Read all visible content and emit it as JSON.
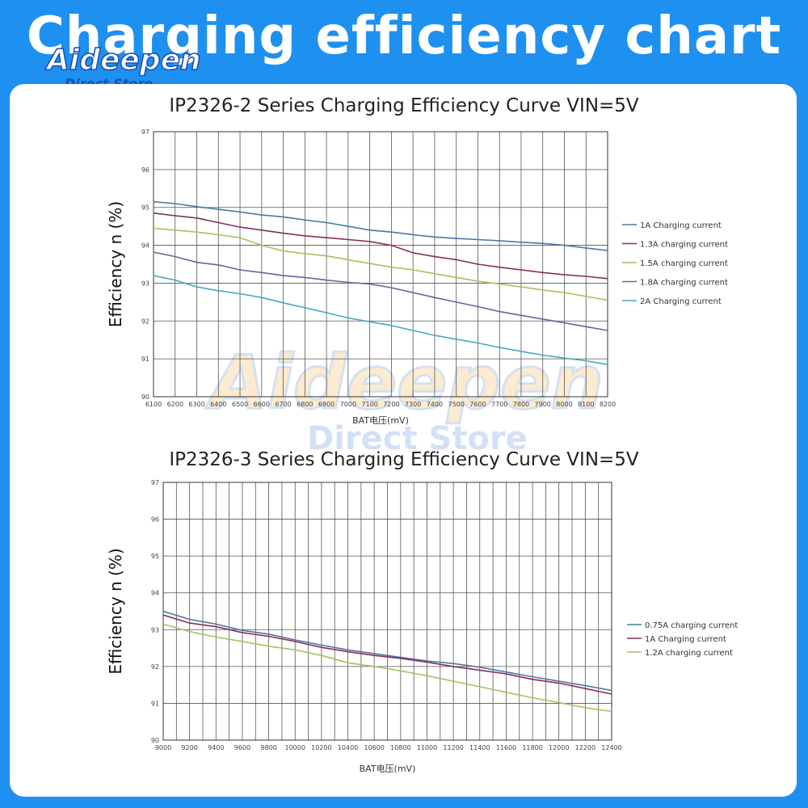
{
  "banner": {
    "title": "Charging efficiency chart"
  },
  "logo": {
    "word": "Aideepen",
    "sub": "Direct Store"
  },
  "watermark": {
    "word": "Aideepen",
    "sub": "Direct Store"
  },
  "colors": {
    "background": "#1e90f0",
    "grid": "#555555",
    "series": [
      "#4a78a8",
      "#8a2d55",
      "#a9c05f",
      "#7a5a9c",
      "#4aa6c0"
    ]
  },
  "chart_data": [
    {
      "type": "line",
      "title": "IP2326-2 Series Charging Efficiency Curve VIN=5V",
      "xlabel": "BAT电压(mV)",
      "ylabel": "Efficiency n (%)",
      "xlim": [
        6100,
        8200
      ],
      "ylim": [
        90,
        97
      ],
      "x_ticks": [
        6100,
        6200,
        6300,
        6400,
        6500,
        6600,
        6700,
        6800,
        6900,
        7000,
        7100,
        7200,
        7300,
        7400,
        7500,
        7600,
        7700,
        7800,
        7900,
        8000,
        8100,
        8200
      ],
      "y_ticks": [
        90,
        91,
        92,
        93,
        94,
        95,
        96,
        97
      ],
      "grid": true,
      "legend_position": "right",
      "series": [
        {
          "name": "1A Charging current",
          "color": "#4a78a8",
          "x": [
            6100,
            6200,
            6300,
            6400,
            6500,
            6600,
            6700,
            6800,
            6900,
            7000,
            7100,
            7200,
            7300,
            7400,
            7500,
            7600,
            7700,
            7800,
            7900,
            8000,
            8100,
            8200
          ],
          "y": [
            95.15,
            95.1,
            95.02,
            94.95,
            94.88,
            94.8,
            94.75,
            94.67,
            94.6,
            94.5,
            94.4,
            94.35,
            94.28,
            94.22,
            94.18,
            94.15,
            94.12,
            94.08,
            94.05,
            94.0,
            93.93,
            93.86
          ]
        },
        {
          "name": "1.3A charging current",
          "color": "#8a2d55",
          "x": [
            6100,
            6200,
            6300,
            6400,
            6500,
            6600,
            6700,
            6800,
            6900,
            7000,
            7100,
            7200,
            7300,
            7400,
            7500,
            7600,
            7700,
            7800,
            7900,
            8000,
            8100,
            8200
          ],
          "y": [
            94.85,
            94.78,
            94.72,
            94.6,
            94.48,
            94.4,
            94.32,
            94.25,
            94.2,
            94.15,
            94.1,
            94.0,
            93.8,
            93.7,
            93.62,
            93.5,
            93.42,
            93.35,
            93.28,
            93.22,
            93.18,
            93.12
          ]
        },
        {
          "name": "1.5A charging current",
          "color": "#a9c05f",
          "x": [
            6100,
            6200,
            6300,
            6400,
            6500,
            6600,
            6700,
            6800,
            6900,
            7000,
            7100,
            7200,
            7300,
            7400,
            7500,
            7600,
            7700,
            7800,
            7900,
            8000,
            8100,
            8200
          ],
          "y": [
            94.45,
            94.4,
            94.35,
            94.28,
            94.2,
            94.0,
            93.85,
            93.78,
            93.72,
            93.62,
            93.52,
            93.42,
            93.35,
            93.25,
            93.15,
            93.05,
            92.98,
            92.9,
            92.82,
            92.75,
            92.65,
            92.55
          ]
        },
        {
          "name": "1.8A charging current",
          "color": "#7a5a9c",
          "x": [
            6100,
            6200,
            6300,
            6400,
            6500,
            6600,
            6700,
            6800,
            6900,
            7000,
            7100,
            7200,
            7300,
            7400,
            7500,
            7600,
            7700,
            7800,
            7900,
            8000,
            8100,
            8200
          ],
          "y": [
            93.82,
            93.7,
            93.55,
            93.48,
            93.35,
            93.28,
            93.2,
            93.15,
            93.08,
            93.02,
            92.98,
            92.88,
            92.75,
            92.62,
            92.5,
            92.38,
            92.25,
            92.15,
            92.05,
            91.95,
            91.85,
            91.75
          ]
        },
        {
          "name": "2A Charging current",
          "color": "#4aa6c0",
          "x": [
            6100,
            6200,
            6300,
            6400,
            6500,
            6600,
            6700,
            6800,
            6900,
            7000,
            7100,
            7200,
            7300,
            7400,
            7500,
            7600,
            7700,
            7800,
            7900,
            8000,
            8100,
            8200
          ],
          "y": [
            93.2,
            93.08,
            92.9,
            92.8,
            92.72,
            92.62,
            92.48,
            92.35,
            92.22,
            92.08,
            91.98,
            91.88,
            91.75,
            91.62,
            91.52,
            91.42,
            91.3,
            91.2,
            91.1,
            91.02,
            90.95,
            90.85
          ]
        }
      ]
    },
    {
      "type": "line",
      "title": "IP2326-3 Series Charging Efficiency Curve VIN=5V",
      "xlabel": "BAT电压(mV)",
      "ylabel": "Efficiency n (%)",
      "xlim": [
        9000,
        12400
      ],
      "ylim": [
        90,
        97
      ],
      "x_ticks": [
        9000,
        9200,
        9400,
        9600,
        9800,
        10000,
        10200,
        10400,
        10600,
        10800,
        11000,
        11200,
        11400,
        11600,
        11800,
        12000,
        12200,
        12400
      ],
      "y_ticks": [
        90,
        91,
        92,
        93,
        94,
        95,
        96,
        97
      ],
      "x_minor_step": 100,
      "grid": true,
      "legend_position": "right",
      "series": [
        {
          "name": "0.75A charging current",
          "color": "#4a78a8",
          "x": [
            9000,
            9200,
            9400,
            9600,
            9800,
            10000,
            10200,
            10400,
            10600,
            10800,
            11000,
            11200,
            11400,
            11600,
            11800,
            12000,
            12200,
            12400
          ],
          "y": [
            93.5,
            93.28,
            93.15,
            92.98,
            92.88,
            92.72,
            92.58,
            92.45,
            92.35,
            92.25,
            92.15,
            92.08,
            91.98,
            91.85,
            91.72,
            91.6,
            91.48,
            91.35
          ]
        },
        {
          "name": "1A Charging current",
          "color": "#8a2d55",
          "x": [
            9000,
            9200,
            9400,
            9600,
            9800,
            10000,
            10200,
            10400,
            10600,
            10800,
            11000,
            11200,
            11400,
            11600,
            11800,
            12000,
            12200,
            12400
          ],
          "y": [
            93.4,
            93.18,
            93.08,
            92.92,
            92.82,
            92.68,
            92.52,
            92.4,
            92.3,
            92.22,
            92.12,
            92.0,
            91.9,
            91.8,
            91.65,
            91.55,
            91.4,
            91.25
          ]
        },
        {
          "name": "1.2A charging current",
          "color": "#a9c05f",
          "x": [
            9000,
            9200,
            9400,
            9600,
            9800,
            10000,
            10200,
            10400,
            10600,
            10800,
            11000,
            11200,
            11400,
            11600,
            11800,
            12000,
            12200,
            12400
          ],
          "y": [
            93.15,
            92.95,
            92.8,
            92.68,
            92.55,
            92.45,
            92.3,
            92.1,
            92.0,
            91.88,
            91.75,
            91.6,
            91.45,
            91.3,
            91.15,
            91.02,
            90.88,
            90.78
          ]
        }
      ]
    }
  ]
}
